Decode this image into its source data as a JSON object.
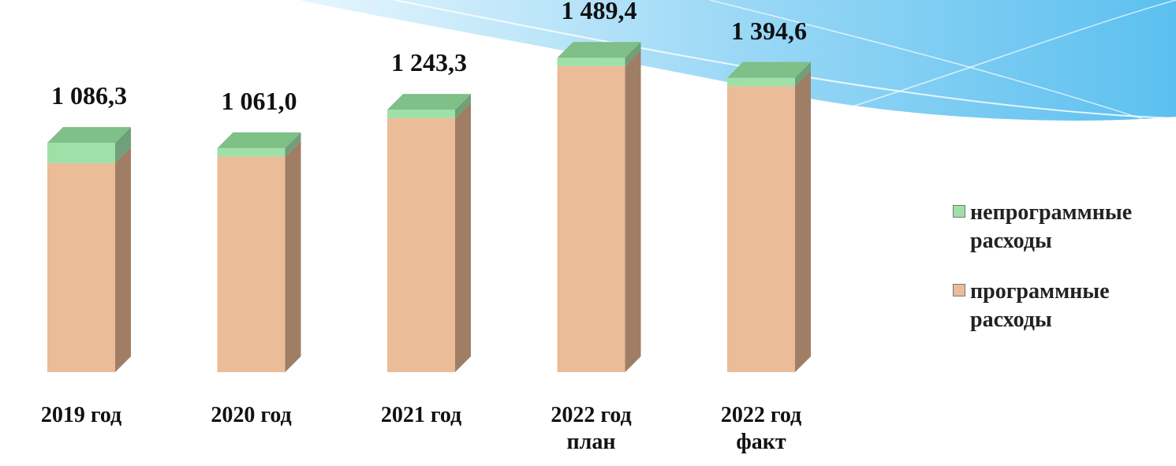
{
  "chart_data": {
    "type": "bar",
    "stacked": true,
    "categories": [
      "2019 год",
      "2020 год",
      "2021 год",
      "2022 год план",
      "2022 год факт"
    ],
    "category_lines": [
      [
        "2019 год"
      ],
      [
        "2020 год"
      ],
      [
        "2021 год"
      ],
      [
        "2022 год",
        "план"
      ],
      [
        "2022 год",
        "факт"
      ]
    ],
    "totals": [
      "1 086,3",
      "1 061,0",
      "1 243,3",
      "1 489,4",
      "1 394,6"
    ],
    "total_values": [
      1086.3,
      1061.0,
      1243.3,
      1489.4,
      1394.6
    ],
    "series": [
      {
        "name": "программные расходы",
        "values": [
          990.3,
          1021.0,
          1203.3,
          1449.4,
          1354.6
        ],
        "color": "#EBBC98",
        "side_color": "#A07E66"
      },
      {
        "name": "непрограммные расходы",
        "values": [
          96.0,
          40.0,
          40.0,
          40.0,
          40.0
        ],
        "color": "#9FE0A8",
        "side_color": "#6FA07A"
      }
    ],
    "legend": {
      "position": "right",
      "items": [
        "непрограммные расходы",
        "программные расходы"
      ]
    },
    "grid": false,
    "ylim": [
      0,
      1550
    ]
  }
}
